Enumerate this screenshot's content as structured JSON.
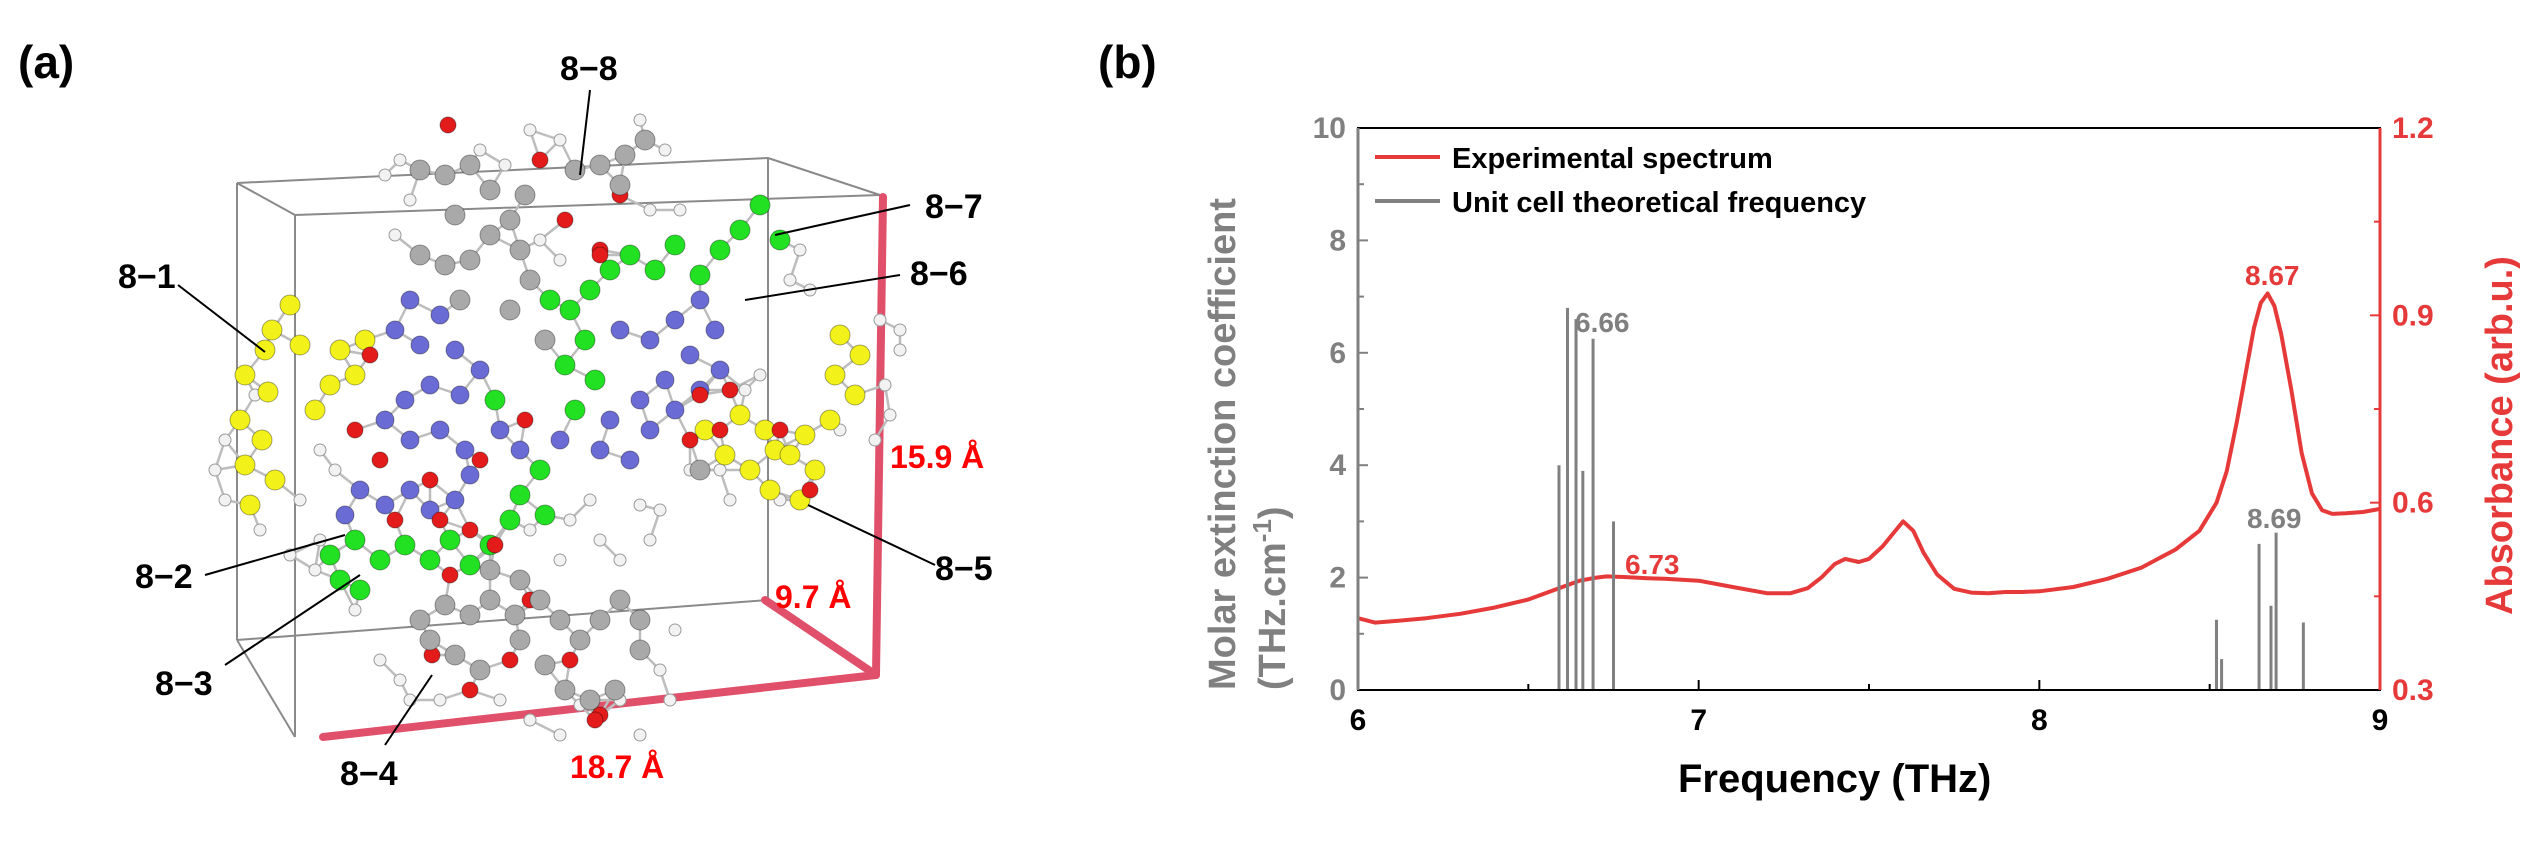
{
  "panel_a": {
    "label": "(a)",
    "molecule_labels": [
      "8−1",
      "8−2",
      "8−3",
      "8−4",
      "8−5",
      "8−6",
      "8−7",
      "8−8"
    ],
    "dimensions": {
      "height": "15.9 Å",
      "depth": "9.7 Å",
      "width": "18.7 Å"
    },
    "colors": {
      "edge": "#e0506a",
      "dim_text": "#ff0000",
      "box": "#8a8a8a",
      "carbon": "#a9a9a9",
      "hydrogen": "#f2f2f2",
      "oxygen": "#e41b1b",
      "nitrogen": "#6b6bd6",
      "highlight_green": "#22e022",
      "highlight_yellow": "#f2f21a"
    }
  },
  "panel_b": {
    "label": "(b)"
  },
  "chart_data": {
    "type": "line",
    "xlabel": "Frequency (THz)",
    "ylabel_left": "Molar extinction coefficient (THz.cm-1)",
    "ylabel_right": "Absorbance (arb.u.)",
    "xlim": [
      6,
      9
    ],
    "ylim_left": [
      0,
      10
    ],
    "ylim_right": [
      0.3,
      1.2
    ],
    "x_ticks": [
      "6",
      "7",
      "8",
      "9"
    ],
    "y_ticks_left": [
      "0",
      "2",
      "4",
      "6",
      "8",
      "10"
    ],
    "y_ticks_right": [
      "0.3",
      "0.6",
      "0.9",
      "1.2"
    ],
    "legend_position": "top-left",
    "series": [
      {
        "name": "Experimental spectrum",
        "color": "#e63a3a",
        "axis": "right",
        "x": [
          6.0,
          6.05,
          6.1,
          6.2,
          6.3,
          6.4,
          6.5,
          6.6,
          6.65,
          6.7,
          6.73,
          6.78,
          6.85,
          6.9,
          7.0,
          7.1,
          7.2,
          7.27,
          7.32,
          7.36,
          7.4,
          7.43,
          7.47,
          7.5,
          7.54,
          7.57,
          7.6,
          7.63,
          7.66,
          7.7,
          7.75,
          7.8,
          7.85,
          7.9,
          7.95,
          8.0,
          8.1,
          8.2,
          8.3,
          8.4,
          8.47,
          8.52,
          8.55,
          8.58,
          8.61,
          8.63,
          8.65,
          8.67,
          8.69,
          8.71,
          8.74,
          8.77,
          8.8,
          8.83,
          8.86,
          8.9,
          8.95,
          9.0
        ],
        "y": [
          0.415,
          0.408,
          0.41,
          0.415,
          0.422,
          0.432,
          0.445,
          0.465,
          0.475,
          0.48,
          0.482,
          0.481,
          0.479,
          0.478,
          0.475,
          0.465,
          0.455,
          0.455,
          0.463,
          0.48,
          0.502,
          0.51,
          0.505,
          0.51,
          0.53,
          0.55,
          0.57,
          0.555,
          0.52,
          0.485,
          0.462,
          0.456,
          0.455,
          0.457,
          0.457,
          0.458,
          0.465,
          0.478,
          0.496,
          0.525,
          0.555,
          0.6,
          0.65,
          0.73,
          0.82,
          0.88,
          0.92,
          0.935,
          0.915,
          0.87,
          0.78,
          0.68,
          0.615,
          0.588,
          0.582,
          0.583,
          0.585,
          0.59
        ]
      },
      {
        "name": "Unit cell theoretical frequency",
        "type": "stick",
        "color": "#808080",
        "axis": "left",
        "x": [
          6.59,
          6.615,
          6.64,
          6.66,
          6.69,
          6.75,
          8.52,
          8.535,
          8.645,
          8.68,
          8.695,
          8.775
        ],
        "y": [
          4.0,
          6.8,
          6.6,
          3.9,
          6.25,
          3.0,
          1.25,
          0.55,
          2.6,
          1.5,
          2.8,
          1.2
        ]
      }
    ],
    "annotations": [
      {
        "text": "6.66",
        "x": 6.66,
        "color": "#808080"
      },
      {
        "text": "6.73",
        "x": 6.73,
        "color": "#e63a3a"
      },
      {
        "text": "8.67",
        "x": 8.67,
        "color": "#e63a3a"
      },
      {
        "text": "8.69",
        "x": 8.69,
        "color": "#808080"
      }
    ]
  }
}
